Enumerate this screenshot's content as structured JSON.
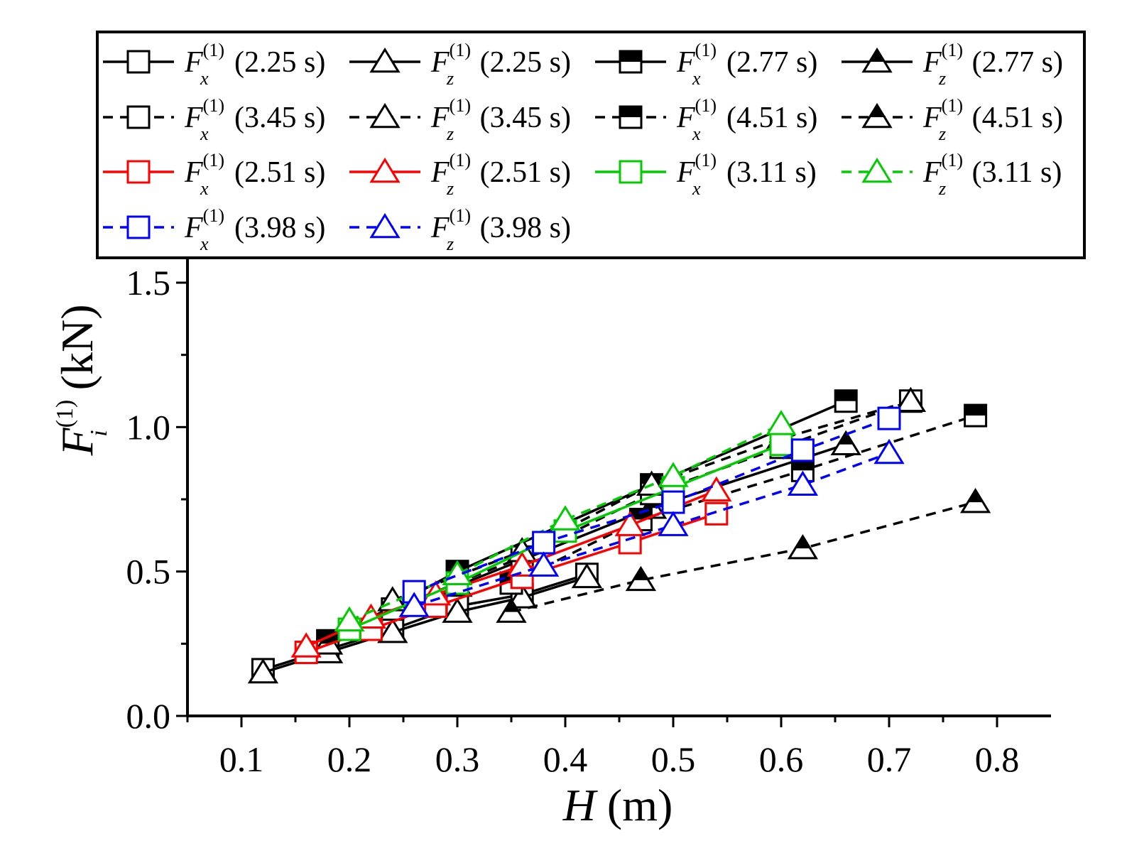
{
  "chart_data": {
    "type": "line",
    "title": "",
    "xlabel": {
      "symbol": "H",
      "unit": " (m)"
    },
    "ylabel": {
      "symbol": "F",
      "subscript": "i",
      "superscript": "(1)",
      "unit": " (kN)"
    },
    "xlim": [
      0.05,
      0.85
    ],
    "ylim": [
      0.0,
      1.5
    ],
    "xticks": [
      "0.1",
      "0.2",
      "0.3",
      "0.4",
      "0.5",
      "0.6",
      "0.7",
      "0.8"
    ],
    "yticks": [
      "0.0",
      "0.5",
      "1.0",
      "1.5"
    ],
    "grid": false,
    "legend_position": "top",
    "colors": {
      "black": "#000000",
      "red": "#ff0000",
      "green": "#00cc00",
      "blue": "#0000ff"
    },
    "series": [
      {
        "symbol": "F",
        "component": "x",
        "superscript": "(1)",
        "period": "(2.25 s)",
        "color": "#000000",
        "dash": "solid",
        "marker": "square-open",
        "x": [
          0.12,
          0.18,
          0.24,
          0.3,
          0.36,
          0.42
        ],
        "y": [
          0.16,
          0.23,
          0.3,
          0.38,
          0.42,
          0.49
        ]
      },
      {
        "symbol": "F",
        "component": "z",
        "superscript": "(1)",
        "period": "(2.25 s)",
        "color": "#000000",
        "dash": "solid",
        "marker": "triangle-open",
        "x": [
          0.12,
          0.18,
          0.24,
          0.3,
          0.36,
          0.42
        ],
        "y": [
          0.15,
          0.22,
          0.29,
          0.36,
          0.41,
          0.48
        ]
      },
      {
        "symbol": "F",
        "component": "x",
        "superscript": "(1)",
        "period": "(2.77 s)",
        "color": "#000000",
        "dash": "solid",
        "marker": "square-half",
        "x": [
          0.18,
          0.3,
          0.48,
          0.66
        ],
        "y": [
          0.26,
          0.5,
          0.8,
          1.09
        ]
      },
      {
        "symbol": "F",
        "component": "z",
        "superscript": "(1)",
        "period": "(2.77 s)",
        "color": "#000000",
        "dash": "solid",
        "marker": "triangle-half",
        "x": [
          0.18,
          0.3,
          0.48,
          0.66
        ],
        "y": [
          0.25,
          0.45,
          0.72,
          0.94
        ]
      },
      {
        "symbol": "F",
        "component": "x",
        "superscript": "(1)",
        "period": "(3.45 s)",
        "color": "#000000",
        "dash": "dash",
        "marker": "square-open",
        "x": [
          0.24,
          0.36,
          0.48,
          0.6,
          0.72
        ],
        "y": [
          0.37,
          0.55,
          0.77,
          0.93,
          1.09
        ]
      },
      {
        "symbol": "F",
        "component": "z",
        "superscript": "(1)",
        "period": "(3.45 s)",
        "color": "#000000",
        "dash": "dash",
        "marker": "triangle-open",
        "x": [
          0.24,
          0.36,
          0.48,
          0.6,
          0.72
        ],
        "y": [
          0.4,
          0.57,
          0.8,
          0.96,
          1.09
        ]
      },
      {
        "symbol": "F",
        "component": "x",
        "superscript": "(1)",
        "period": "(4.51 s)",
        "color": "#000000",
        "dash": "dash",
        "marker": "square-half",
        "x": [
          0.35,
          0.47,
          0.62,
          0.78
        ],
        "y": [
          0.46,
          0.68,
          0.85,
          1.04
        ]
      },
      {
        "symbol": "F",
        "component": "z",
        "superscript": "(1)",
        "period": "(4.51 s)",
        "color": "#000000",
        "dash": "dash",
        "marker": "triangle-half",
        "x": [
          0.35,
          0.47,
          0.62,
          0.78
        ],
        "y": [
          0.36,
          0.47,
          0.58,
          0.74
        ]
      },
      {
        "symbol": "F",
        "component": "x",
        "superscript": "(1)",
        "period": "(2.51 s)",
        "color": "#ff0000",
        "dash": "solid",
        "marker": "square-open",
        "x": [
          0.16,
          0.22,
          0.28,
          0.36,
          0.46,
          0.54
        ],
        "y": [
          0.22,
          0.3,
          0.38,
          0.48,
          0.6,
          0.7
        ]
      },
      {
        "symbol": "F",
        "component": "z",
        "superscript": "(1)",
        "period": "(2.51 s)",
        "color": "#ff0000",
        "dash": "solid",
        "marker": "triangle-open",
        "x": [
          0.16,
          0.22,
          0.28,
          0.36,
          0.46,
          0.54
        ],
        "y": [
          0.24,
          0.34,
          0.42,
          0.52,
          0.66,
          0.78
        ]
      },
      {
        "symbol": "F",
        "component": "x",
        "superscript": "(1)",
        "period": "(3.11 s)",
        "color": "#00cc00",
        "dash": "solid",
        "marker": "square-open",
        "x": [
          0.2,
          0.3,
          0.4,
          0.5,
          0.6
        ],
        "y": [
          0.3,
          0.46,
          0.64,
          0.79,
          0.94
        ]
      },
      {
        "symbol": "F",
        "component": "z",
        "superscript": "(1)",
        "period": "(3.11 s)",
        "color": "#00cc00",
        "dash": "dash",
        "marker": "triangle-open",
        "x": [
          0.2,
          0.3,
          0.4,
          0.5,
          0.6
        ],
        "y": [
          0.33,
          0.49,
          0.68,
          0.83,
          1.01
        ]
      },
      {
        "symbol": "F",
        "component": "x",
        "superscript": "(1)",
        "period": "(3.98 s)",
        "color": "#0000ff",
        "dash": "dash",
        "marker": "square-open",
        "x": [
          0.26,
          0.38,
          0.5,
          0.62,
          0.7
        ],
        "y": [
          0.43,
          0.6,
          0.74,
          0.92,
          1.03
        ]
      },
      {
        "symbol": "F",
        "component": "z",
        "superscript": "(1)",
        "period": "(3.98 s)",
        "color": "#0000ff",
        "dash": "dash",
        "marker": "triangle-open",
        "x": [
          0.26,
          0.38,
          0.5,
          0.62,
          0.7
        ],
        "y": [
          0.38,
          0.52,
          0.66,
          0.8,
          0.91
        ]
      }
    ]
  }
}
